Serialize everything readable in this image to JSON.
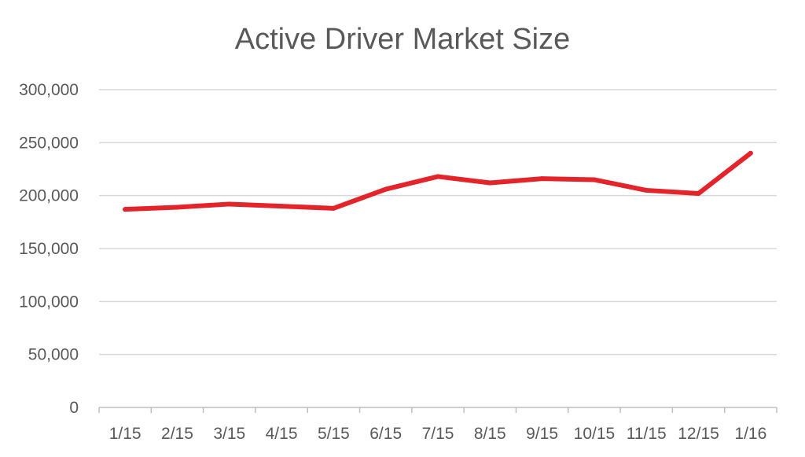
{
  "chart_data": {
    "type": "line",
    "title": "Active Driver Market Size",
    "xlabel": "",
    "ylabel": "",
    "categories": [
      "1/15",
      "2/15",
      "3/15",
      "4/15",
      "5/15",
      "6/15",
      "7/15",
      "8/15",
      "9/15",
      "10/15",
      "11/15",
      "12/15",
      "1/16"
    ],
    "series": [
      {
        "values": [
          187000,
          189000,
          192000,
          190000,
          188000,
          206000,
          218000,
          212000,
          216000,
          215000,
          205000,
          202000,
          240000
        ],
        "color": "#e3242b"
      }
    ],
    "ylim": [
      0,
      300000
    ],
    "yticks": [
      0,
      50000,
      100000,
      150000,
      200000,
      250000,
      300000
    ],
    "ytick_labels": [
      "0",
      "50,000",
      "100,000",
      "150,000",
      "200,000",
      "250,000",
      "300,000"
    ],
    "grid": true,
    "legend": "none"
  }
}
